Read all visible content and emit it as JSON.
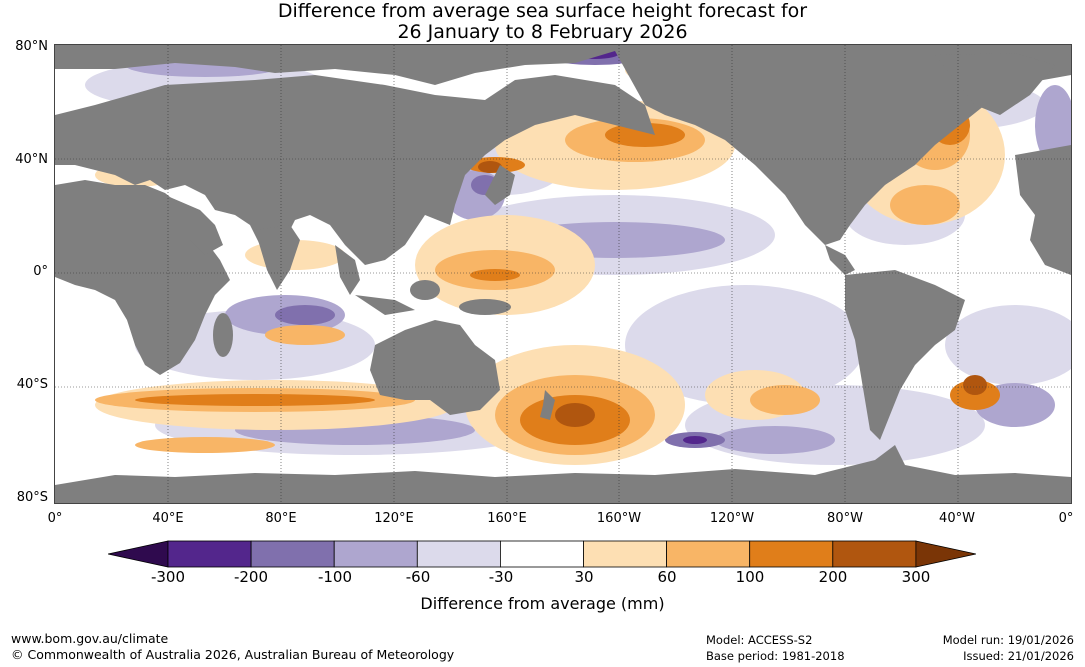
{
  "title": {
    "line1": "Difference from average sea surface height forecast for",
    "line2": "26 January to 8 February 2026"
  },
  "axes": {
    "lat_labels": [
      "80°N",
      "40°N",
      "0°",
      "40°S",
      "80°S"
    ],
    "lon_labels": [
      "0°",
      "40°E",
      "80°E",
      "120°E",
      "160°E",
      "160°W",
      "120°W",
      "80°W",
      "40°W",
      "0°"
    ]
  },
  "legend": {
    "title": "Difference from average (mm)",
    "ticks": [
      "-300",
      "-200",
      "-100",
      "-60",
      "-30",
      "30",
      "60",
      "100",
      "200",
      "300"
    ],
    "colors": [
      "#2f0a4e",
      "#53268c",
      "#8070ad",
      "#aea6cf",
      "#dcdaeb",
      "#ffffff",
      "#fddfb3",
      "#f8b566",
      "#e07e1a",
      "#b0560f",
      "#7a3506"
    ]
  },
  "footer": {
    "url": "www.bom.gov.au/climate",
    "copyright": "© Commonwealth of Australia 2026, Australian Bureau of Meteorology",
    "model": "Model: ACCESS-S2",
    "base_period": "Base period: 1981-2018",
    "model_run": "Model run: 19/01/2026",
    "issued": "Issued: 21/01/2026"
  },
  "colors": {
    "land": "#7f7f7f",
    "grid": "#333333"
  }
}
